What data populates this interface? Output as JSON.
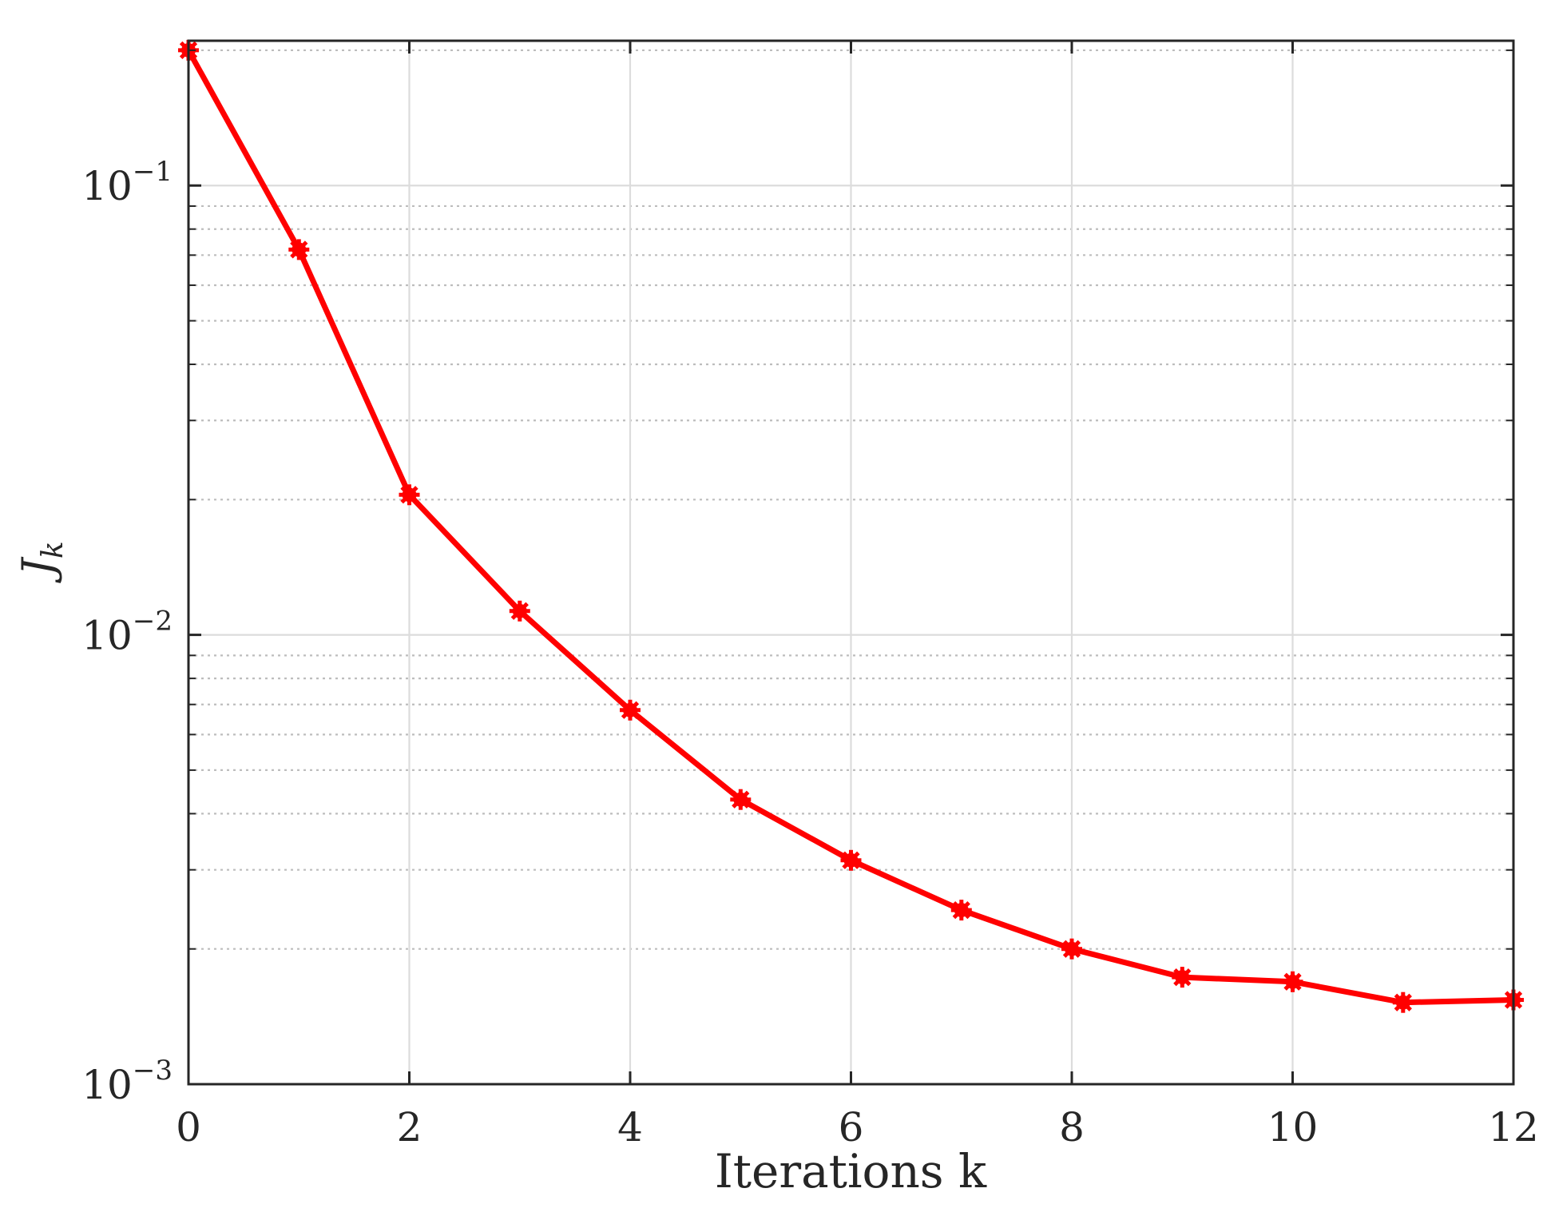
{
  "chart_data": {
    "type": "line",
    "xlabel": "Iterations k",
    "ylabel": "J",
    "ylabel_subscript": "k",
    "xlim": [
      0,
      12
    ],
    "ylim": [
      0.001,
      0.21
    ],
    "yscale": "log",
    "grid": true,
    "x_ticks": [
      "0",
      "2",
      "4",
      "6",
      "8",
      "10",
      "12"
    ],
    "y_ticks": [
      {
        "base": "10",
        "exp": "−1",
        "value": 0.1
      },
      {
        "base": "10",
        "exp": "−2",
        "value": 0.01
      },
      {
        "base": "10",
        "exp": "−3",
        "value": 0.001
      }
    ],
    "colors": {
      "series": "#ff0000",
      "axes": "#262626",
      "grid": "#dcdcdc"
    },
    "series": [
      {
        "x": [
          0,
          1,
          2,
          3,
          4,
          5,
          6,
          7,
          8,
          9,
          10,
          11,
          12
        ],
        "y": [
          0.2,
          0.072,
          0.0205,
          0.0113,
          0.0068,
          0.0043,
          0.00315,
          0.00244,
          0.002,
          0.00173,
          0.00169,
          0.00152,
          0.00154
        ]
      }
    ]
  }
}
